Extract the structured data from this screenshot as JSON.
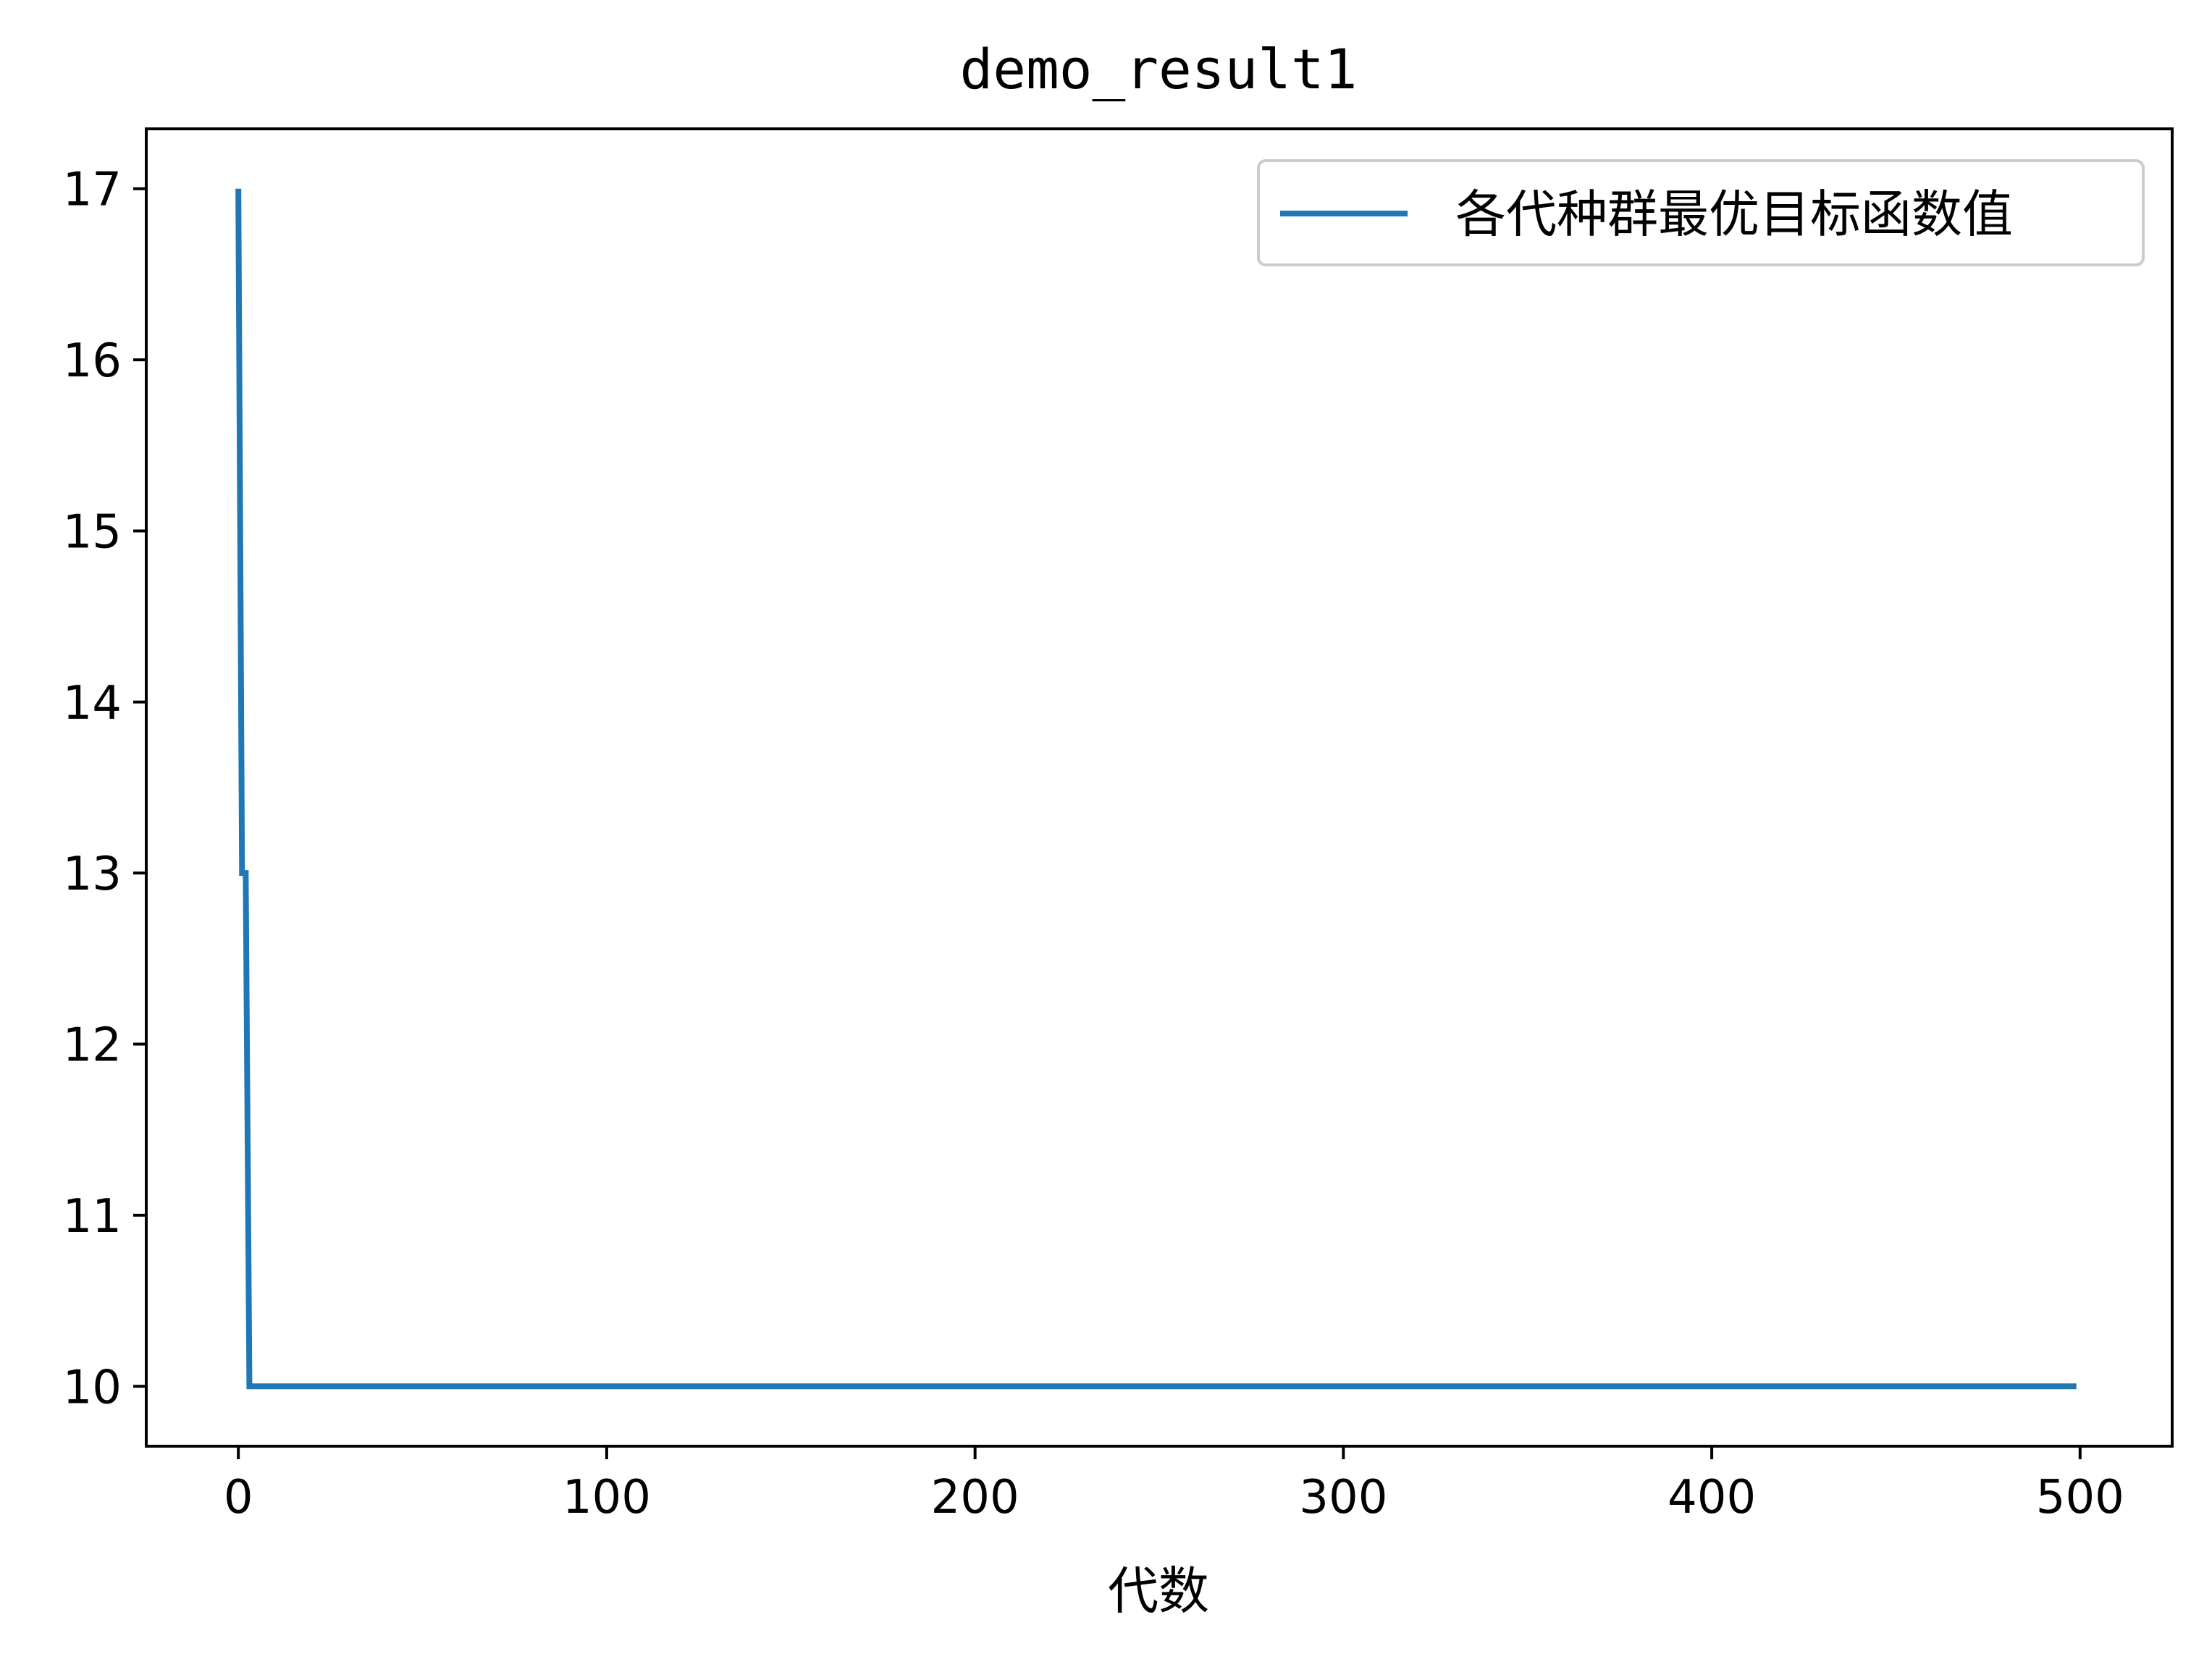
{
  "chart_data": {
    "type": "line",
    "title": "demo_result1",
    "xlabel": "代数",
    "ylabel": "",
    "xlim": [
      -25,
      525
    ],
    "ylim": [
      9.65,
      17.35
    ],
    "xticks": [
      0,
      100,
      200,
      300,
      400,
      500
    ],
    "xtick_labels": [
      "0",
      "100",
      "200",
      "300",
      "400",
      "500"
    ],
    "yticks": [
      10,
      11,
      12,
      13,
      14,
      15,
      16,
      17
    ],
    "ytick_labels": [
      "10",
      "11",
      "12",
      "13",
      "14",
      "15",
      "16",
      "17"
    ],
    "grid": false,
    "legend_position": "top-right",
    "series": [
      {
        "name": "各代种群最优目标函数值",
        "color": "#1f77b4",
        "x": [
          0,
          1,
          2,
          3,
          499
        ],
        "y": [
          17,
          13,
          13,
          10,
          10
        ]
      }
    ]
  }
}
